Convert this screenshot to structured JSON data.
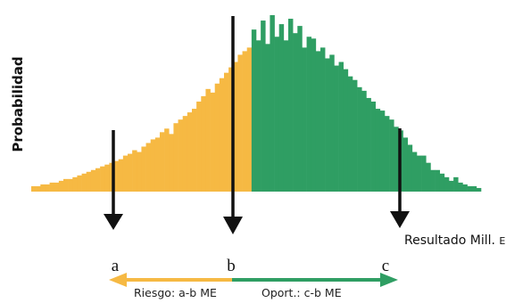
{
  "chart_data": {
    "type": "bar",
    "title": "",
    "ylabel": "Probabilidad",
    "xlabel": "Resultado Mill. E",
    "xlabel_main": "Resultado Mill.",
    "xlabel_unit": "E",
    "split_index": 48,
    "colors": {
      "risk": "#f6b943",
      "opportunity": "#2f9e63",
      "axis": "#111111"
    },
    "values": [
      3,
      3,
      4,
      4,
      5,
      5,
      6,
      7,
      7,
      8,
      9,
      10,
      11,
      12,
      13,
      14,
      15,
      16,
      17,
      18,
      20,
      21,
      23,
      22,
      25,
      27,
      29,
      30,
      33,
      35,
      32,
      38,
      40,
      42,
      44,
      46,
      50,
      53,
      57,
      55,
      60,
      63,
      66,
      69,
      72,
      76,
      78,
      80,
      90,
      84,
      95,
      82,
      98,
      86,
      93,
      84,
      96,
      88,
      92,
      80,
      86,
      85,
      78,
      80,
      74,
      76,
      70,
      72,
      68,
      64,
      62,
      58,
      56,
      52,
      50,
      46,
      45,
      42,
      40,
      36,
      34,
      30,
      26,
      22,
      20,
      20,
      16,
      12,
      12,
      10,
      8,
      6,
      8,
      5,
      4,
      3,
      3,
      2
    ]
  },
  "markers": {
    "a": "a",
    "b": "b",
    "c": "c"
  },
  "ranges": {
    "risk": "Riesgo: a-b ME",
    "opportunity": "Oport.: c-b ME"
  }
}
